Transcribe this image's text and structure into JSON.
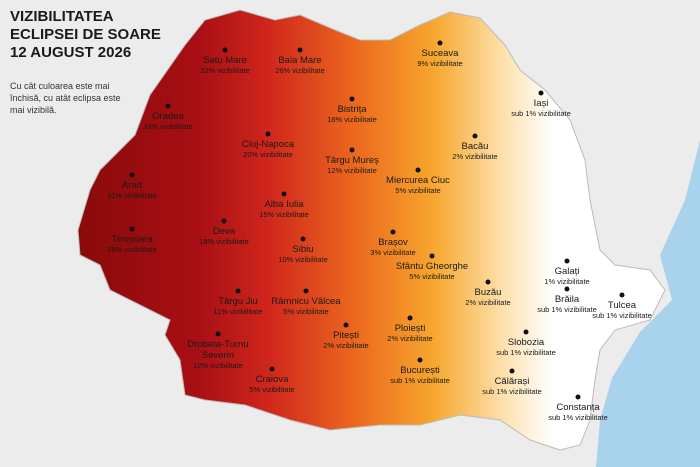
{
  "header": {
    "title": "VIZIBILITATEA ECLIPSEI DE SOARE",
    "date": "12 AUGUST 2026",
    "description": "Cu cât culoarea este mai închisă, cu atât eclipsa este mai vizibilă."
  },
  "cities": [
    {
      "name": "Satu Mare",
      "visibility": "32% vizibilitate"
    },
    {
      "name": "Baia Mare",
      "visibility": "26% vizibilitate"
    },
    {
      "name": "Suceava",
      "visibility": "9% vizibilitate"
    },
    {
      "name": "Iași",
      "visibility": "sub 1% vizibilitate"
    },
    {
      "name": "Oradea",
      "visibility": "33% vizibilitate"
    },
    {
      "name": "Bistrița",
      "visibility": "16% vizibilitate"
    },
    {
      "name": "Cluj-Napoca",
      "visibility": "20% vizibilitate"
    },
    {
      "name": "Târgu Mureș",
      "visibility": "12% vizibilitate"
    },
    {
      "name": "Bacău",
      "visibility": "2% vizibilitate"
    },
    {
      "name": "Miercurea Ciuc",
      "visibility": "5% vizibilitate"
    },
    {
      "name": "Arad",
      "visibility": "31% vizibilitate"
    },
    {
      "name": "Alba Iulia",
      "visibility": "15% vizibilitate"
    },
    {
      "name": "Deva",
      "visibility": "18% vizibilitate"
    },
    {
      "name": "Timișoara",
      "visibility": "28% vizibilitate"
    },
    {
      "name": "Brașov",
      "visibility": "3% vizibilitate"
    },
    {
      "name": "Sibiu",
      "visibility": "10% vizibilitate"
    },
    {
      "name": "Sfântu Gheorghe",
      "visibility": "5% vizibilitate"
    },
    {
      "name": "Galați",
      "visibility": "1% vizibilitate"
    },
    {
      "name": "Brăila",
      "visibility": "sub 1% vizibilitate"
    },
    {
      "name": "Tulcea",
      "visibility": "sub 1% vizibilitate"
    },
    {
      "name": "Buzău",
      "visibility": "2% vizibilitate"
    },
    {
      "name": "Târgu Jiu",
      "visibility": "11% vizibilitate"
    },
    {
      "name": "Râmnicu Vâlcea",
      "visibility": "5% vizibilitate"
    },
    {
      "name": "Slobozia",
      "visibility": "sub 1% vizibilitate"
    },
    {
      "name": "Ploiești",
      "visibility": "2% vizibilitate"
    },
    {
      "name": "Pitești",
      "visibility": "2% vizibilitate"
    },
    {
      "name": "Drobeta-Turnu Severin",
      "visibility": "12% vizibilitate"
    },
    {
      "name": "București",
      "visibility": "sub 1% vizibilitate"
    },
    {
      "name": "Craiova",
      "visibility": "5% vizibilitate"
    },
    {
      "name": "Călărași",
      "visibility": "sub 1% vizibilitate"
    },
    {
      "name": "Constanța",
      "visibility": "sub 1% vizibilitate"
    }
  ]
}
